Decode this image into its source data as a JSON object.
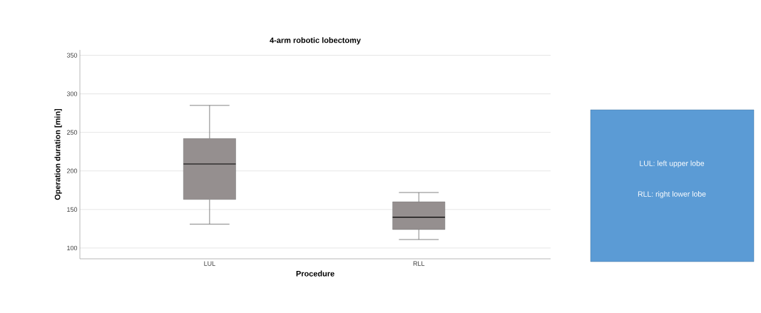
{
  "chart_data": [
    {
      "type": "box",
      "title": "4-arm robotic lobectomy",
      "xlabel": "Procedure",
      "ylabel": "Operation duration [min]",
      "categories": [
        "LUL",
        "RLL"
      ],
      "boxes": [
        {
          "low": 131,
          "q1": 163,
          "median": 209,
          "q3": 242,
          "high": 285
        },
        {
          "low": 111,
          "q1": 124,
          "median": 140,
          "q3": 160,
          "high": 172
        }
      ],
      "color": "#958f8f",
      "ylim": [
        86,
        357
      ],
      "yticks": [
        100,
        150,
        200,
        250,
        300,
        350
      ],
      "grid": "y"
    },
    {
      "type": "other",
      "color": "#5b9bd5",
      "annotations": [
        "LUL: left upper lobe",
        "RLL: right lower lobe"
      ]
    }
  ]
}
